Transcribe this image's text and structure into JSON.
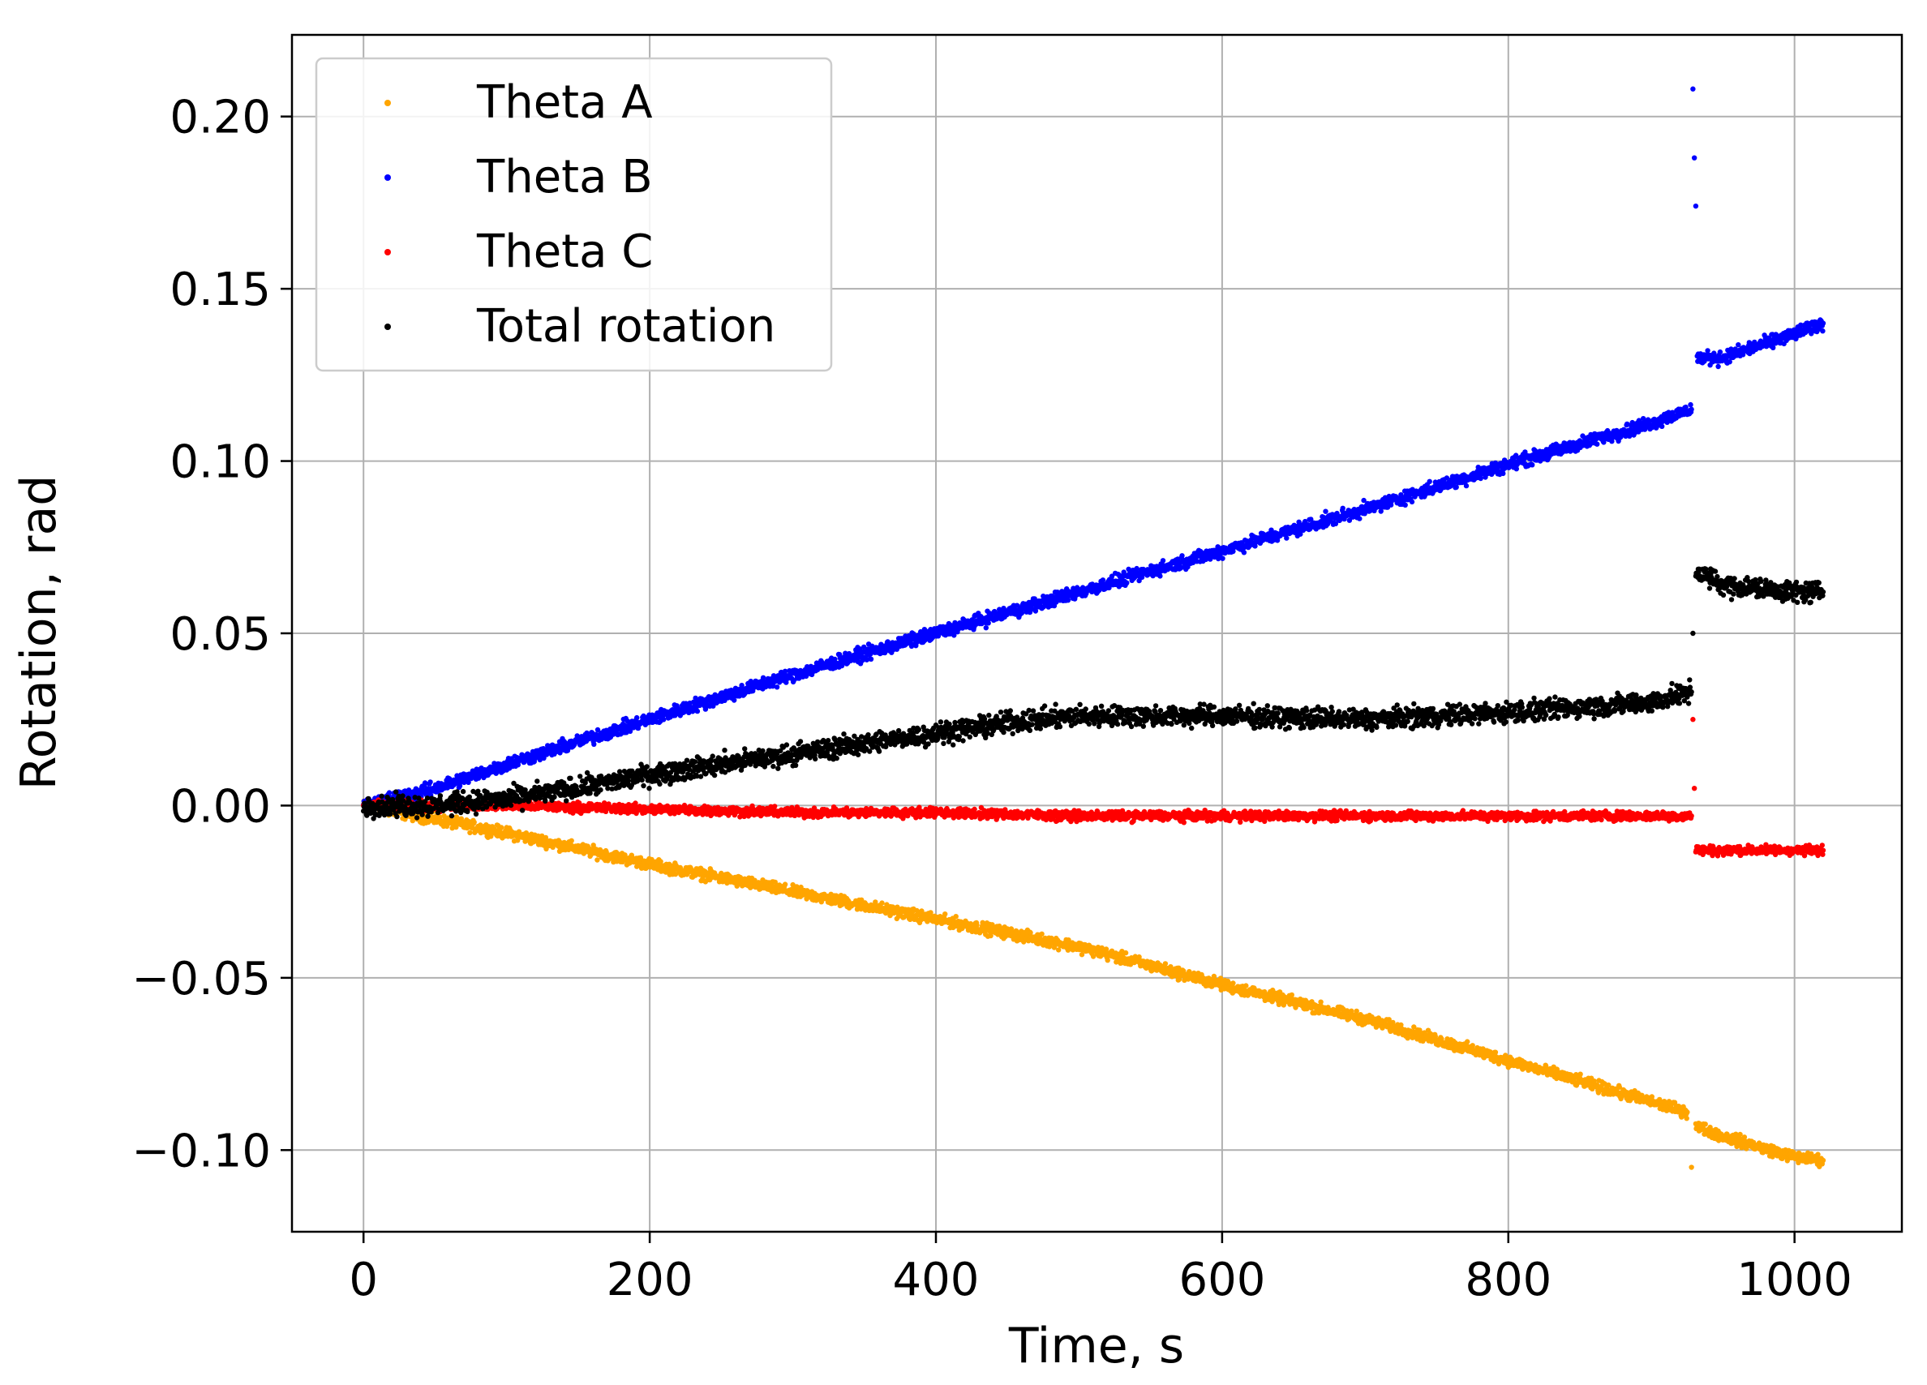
{
  "chart_data": {
    "type": "scatter",
    "title": "",
    "xlabel": "Time, s",
    "ylabel": "Rotation, rad",
    "xlim": [
      -50,
      1075
    ],
    "ylim": [
      -0.1237,
      0.2237
    ],
    "xticks": [
      0,
      200,
      400,
      600,
      800,
      1000
    ],
    "xtick_labels": [
      "0",
      "200",
      "400",
      "600",
      "800",
      "1000"
    ],
    "yticks": [
      -0.1,
      -0.05,
      0.0,
      0.05,
      0.1,
      0.15,
      0.2
    ],
    "ytick_labels": [
      "−0.10",
      "−0.05",
      "0.00",
      "0.05",
      "0.10",
      "0.15",
      "0.20"
    ],
    "grid": true,
    "legend_position": "top-left",
    "series": [
      {
        "name": "Theta A",
        "color": "#FFA500",
        "x": [
          0,
          50,
          100,
          200,
          300,
          400,
          500,
          600,
          700,
          800,
          900,
          925,
          928,
          931,
          950,
          1000,
          1020
        ],
        "y": [
          0.0,
          -0.004,
          -0.008,
          -0.017,
          -0.025,
          -0.033,
          -0.041,
          -0.052,
          -0.062,
          -0.074,
          -0.086,
          -0.089,
          -0.105,
          -0.093,
          -0.096,
          -0.102,
          -0.103
        ],
        "noise": 0.0012
      },
      {
        "name": "Theta B",
        "color": "#0000FF",
        "x": [
          0,
          50,
          100,
          200,
          300,
          400,
          500,
          600,
          700,
          800,
          900,
          928,
          929,
          930,
          931,
          932,
          950,
          1000,
          1020
        ],
        "y": [
          0.0,
          0.005,
          0.012,
          0.025,
          0.038,
          0.05,
          0.062,
          0.074,
          0.086,
          0.099,
          0.111,
          0.115,
          0.208,
          0.188,
          0.174,
          0.13,
          0.13,
          0.137,
          0.14
        ],
        "noise": 0.0014
      },
      {
        "name": "Theta C",
        "color": "#FF0000",
        "x": [
          0,
          50,
          100,
          200,
          300,
          400,
          500,
          600,
          700,
          800,
          900,
          928,
          929,
          930,
          931,
          950,
          1000,
          1020
        ],
        "y": [
          0.0,
          0.0,
          0.0,
          -0.001,
          -0.002,
          -0.002,
          -0.003,
          -0.003,
          -0.003,
          -0.003,
          -0.003,
          -0.003,
          0.025,
          0.005,
          -0.013,
          -0.013,
          -0.013,
          -0.013
        ],
        "noise": 0.001
      },
      {
        "name": "Total rotation",
        "color": "#000000",
        "x": [
          0,
          50,
          100,
          150,
          200,
          300,
          400,
          450,
          500,
          600,
          700,
          800,
          900,
          928,
          929,
          931,
          950,
          1000,
          1020
        ],
        "y": [
          0.0,
          0.0,
          0.002,
          0.005,
          0.009,
          0.015,
          0.021,
          0.024,
          0.026,
          0.026,
          0.025,
          0.027,
          0.03,
          0.033,
          0.05,
          0.068,
          0.064,
          0.062,
          0.062
        ],
        "noise": 0.0022
      }
    ]
  }
}
